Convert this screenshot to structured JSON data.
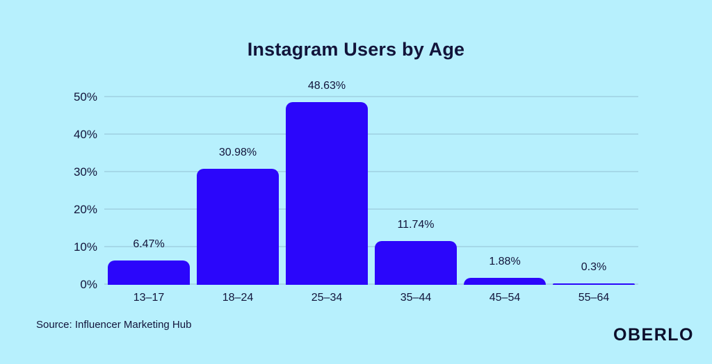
{
  "chart_data": {
    "type": "bar",
    "title": "Instagram Users by Age",
    "categories": [
      "13–17",
      "18–24",
      "25–34",
      "35–44",
      "45–54",
      "55–64"
    ],
    "values": [
      6.47,
      30.98,
      48.63,
      11.74,
      1.88,
      0.3
    ],
    "value_labels": [
      "6.47%",
      "30.98%",
      "48.63%",
      "11.74%",
      "1.88%",
      "0.3%"
    ],
    "yticks": [
      0,
      10,
      20,
      30,
      40,
      50
    ],
    "ytick_labels": [
      "0%",
      "10%",
      "20%",
      "30%",
      "40%",
      "50%"
    ],
    "ylim": [
      0,
      50
    ],
    "grid": true,
    "legend": "none",
    "bar_color": "#2B06FB",
    "background_color": "#B7F0FD",
    "text_color": "#12143A",
    "grid_color": "#A5D8E8"
  },
  "source": "Source: Influencer Marketing Hub",
  "brand": "OBERLO"
}
